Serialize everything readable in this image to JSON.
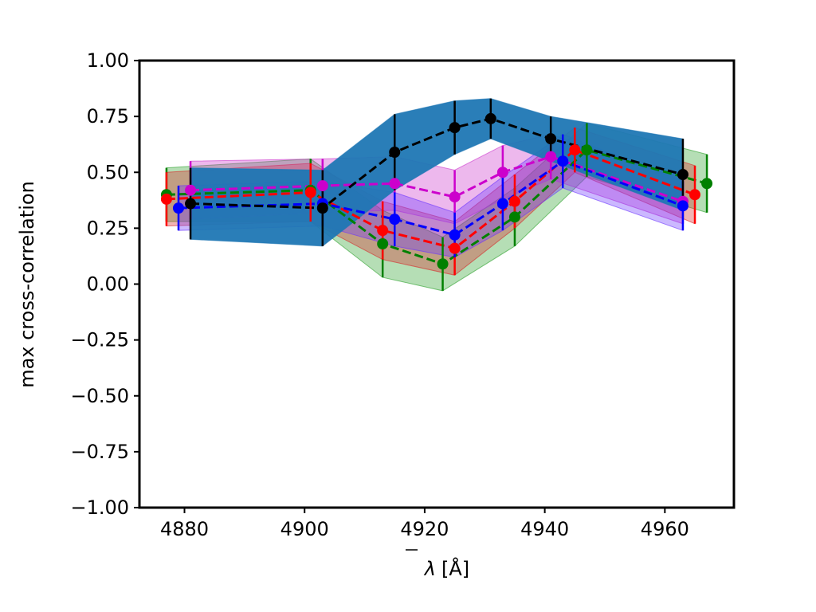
{
  "chart_data": {
    "type": "line",
    "xlabel_symbol": "λ",
    "xlabel_unit": "[Å]",
    "ylabel": "max cross-correlation",
    "xlim": [
      4872.5,
      4971.5
    ],
    "ylim": [
      -1.0,
      1.0
    ],
    "xticks": [
      "4880",
      "4900",
      "4920",
      "4940",
      "4960"
    ],
    "xtick_values": [
      4880,
      4900,
      4920,
      4940,
      4960
    ],
    "yticks": [
      "1.00",
      "0.75",
      "0.50",
      "0.25",
      "0.00",
      "−0.25",
      "−0.50",
      "−0.75",
      "−1.00"
    ],
    "ytick_values": [
      1.0,
      0.75,
      0.5,
      0.25,
      0.0,
      -0.25,
      -0.5,
      -0.75,
      -1.0
    ],
    "grid": false,
    "series": [
      {
        "color": "#008000",
        "band_color": "#2ca02c",
        "x": [
          4877,
          4901,
          4913,
          4923,
          4935,
          4947,
          4967
        ],
        "y": [
          0.4,
          0.42,
          0.18,
          0.09,
          0.3,
          0.6,
          0.45
        ],
        "err": [
          0.12,
          0.14,
          0.15,
          0.12,
          0.13,
          0.12,
          0.13
        ]
      },
      {
        "color": "#ff0000",
        "band_color": "#d62728",
        "x": [
          4877,
          4901,
          4913,
          4925,
          4935,
          4945,
          4965
        ],
        "y": [
          0.38,
          0.41,
          0.24,
          0.16,
          0.37,
          0.6,
          0.4
        ],
        "err": [
          0.12,
          0.13,
          0.13,
          0.12,
          0.12,
          0.1,
          0.13
        ]
      },
      {
        "color": "#cc00cc",
        "band_color": "#cc33cc",
        "x": [
          4881,
          4903,
          4915,
          4925,
          4933,
          4941,
          4963
        ],
        "y": [
          0.42,
          0.44,
          0.45,
          0.39,
          0.5,
          0.57,
          0.37
        ],
        "err": [
          0.13,
          0.12,
          0.12,
          0.12,
          0.12,
          0.1,
          0.1
        ]
      },
      {
        "color": "#0000ff",
        "band_color": "#6a33ff",
        "x": [
          4879,
          4903,
          4915,
          4925,
          4933,
          4943,
          4963
        ],
        "y": [
          0.34,
          0.36,
          0.29,
          0.22,
          0.36,
          0.55,
          0.35
        ],
        "err": [
          0.1,
          0.1,
          0.12,
          0.1,
          0.12,
          0.12,
          0.11
        ]
      },
      {
        "color": "#000000",
        "band_color": "#1f77b4",
        "x": [
          4881,
          4903,
          4915,
          4925,
          4931,
          4941,
          4963
        ],
        "y": [
          0.36,
          0.34,
          0.59,
          0.7,
          0.74,
          0.65,
          0.49
        ],
        "err": [
          0.16,
          0.17,
          0.17,
          0.12,
          0.09,
          0.1,
          0.16
        ]
      }
    ]
  }
}
